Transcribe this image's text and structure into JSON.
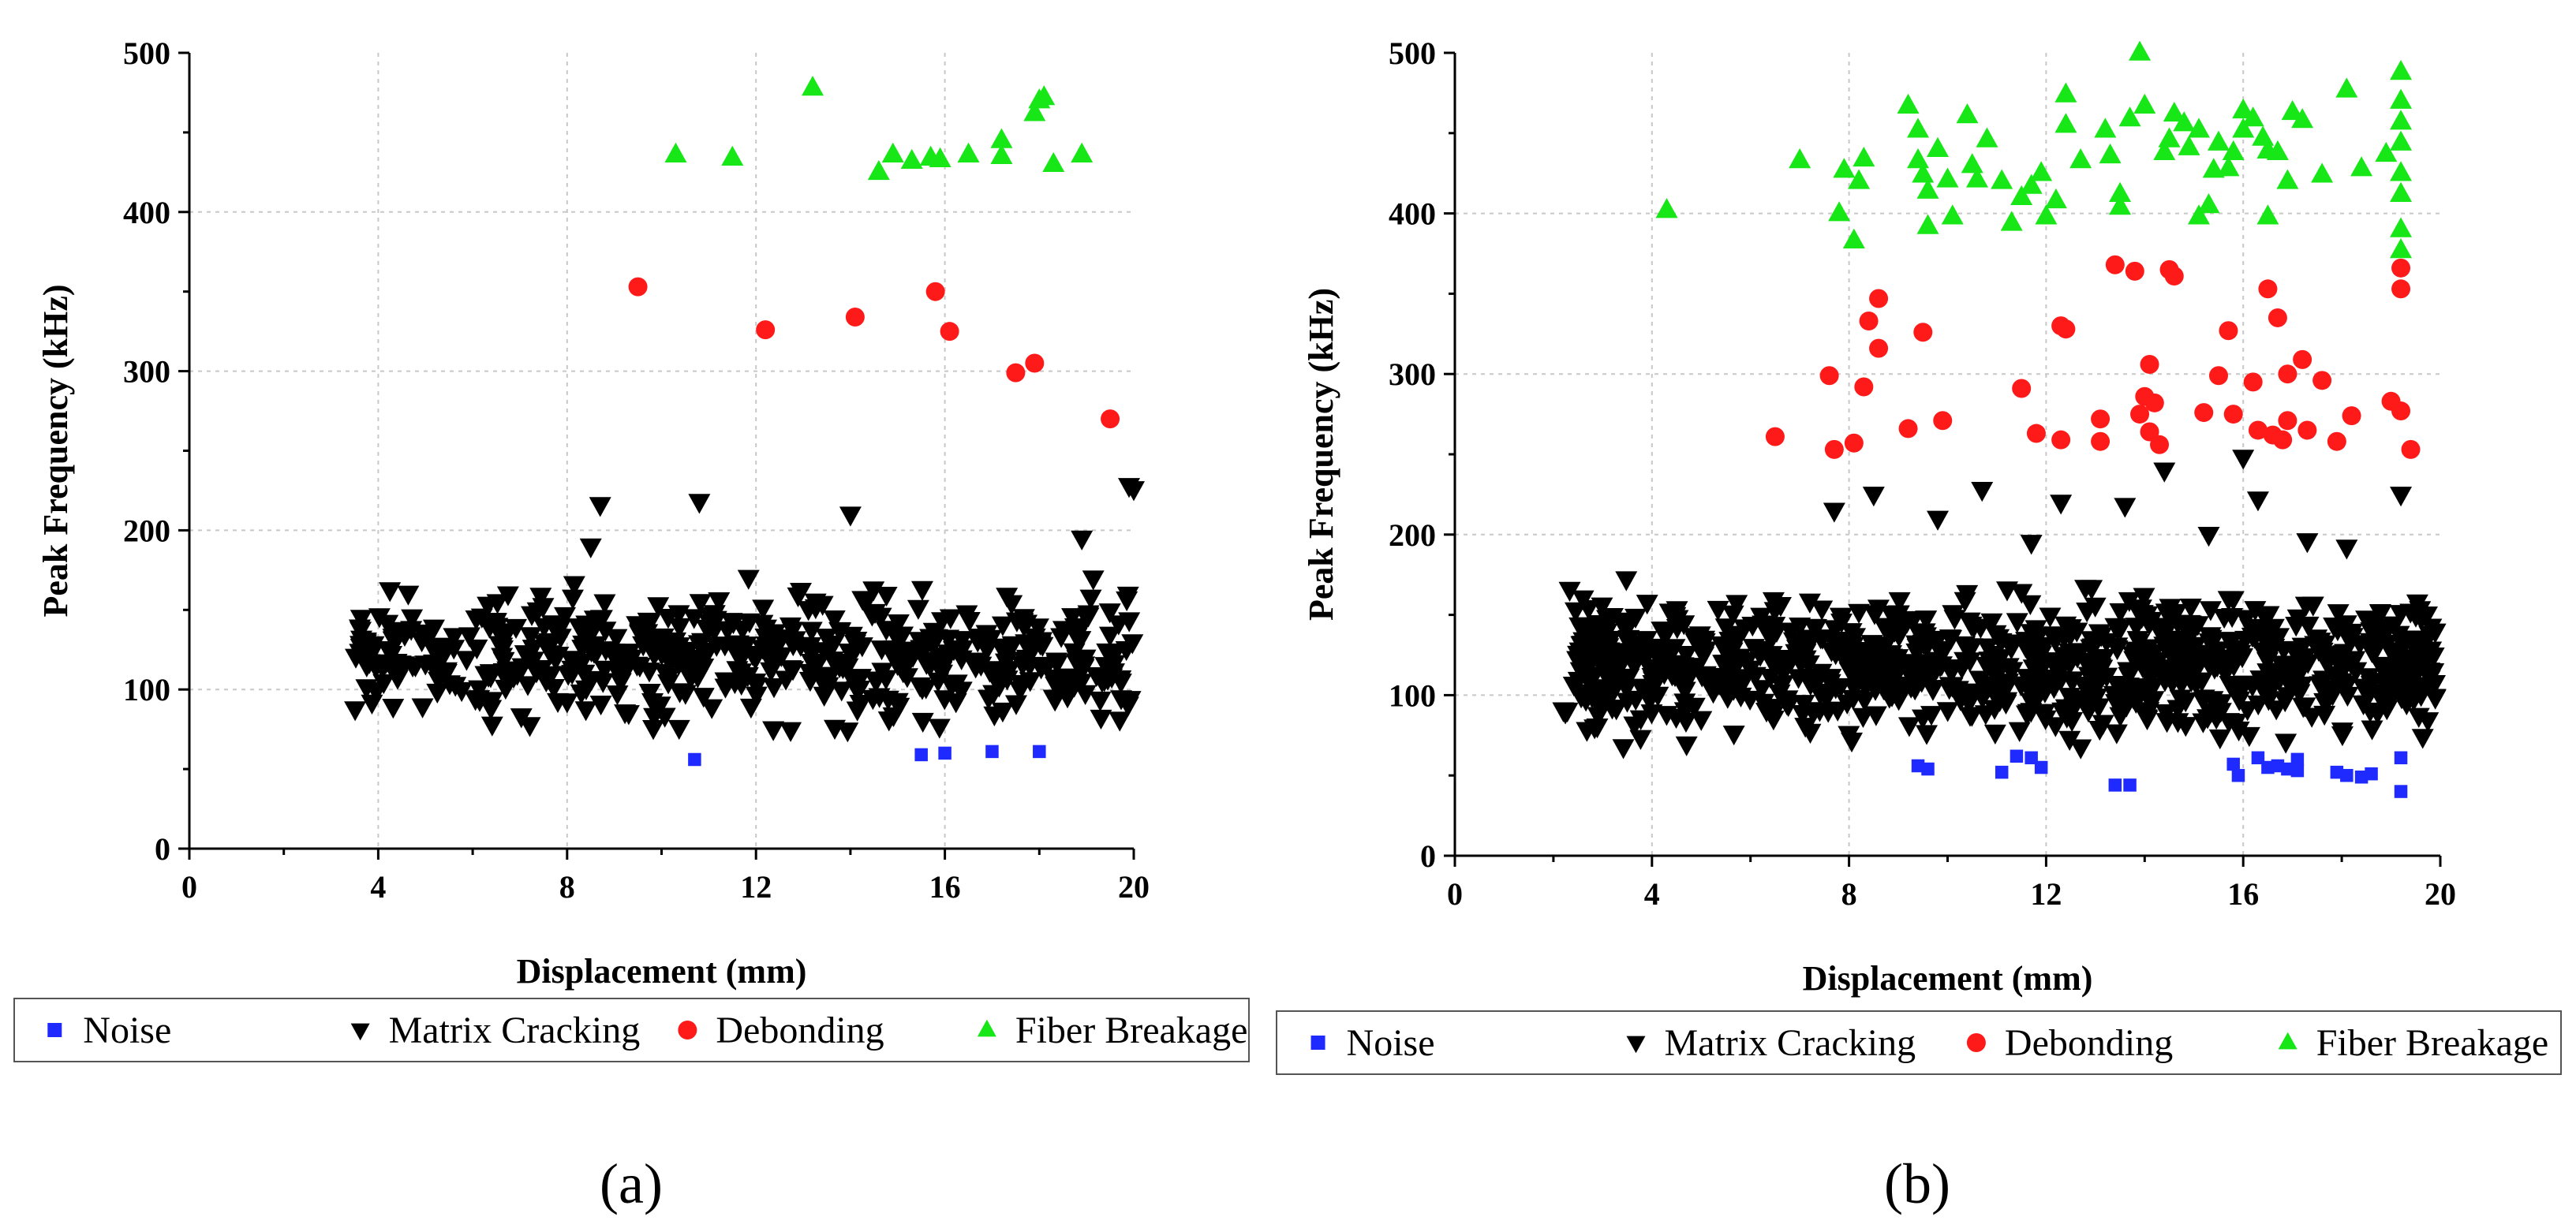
{
  "figure": {
    "description_labels": [
      "(a)",
      "(b)"
    ]
  },
  "colors": {
    "noise": "#1e2aff",
    "matrix": "#000000",
    "debond": "#ff1a1a",
    "fiber": "#17e617",
    "grid": "#c8c8c8"
  },
  "chart_data": [
    {
      "type": "scatter",
      "panel_label": "(a)",
      "xlabel": "Displacement (mm)",
      "ylabel": "Peak Frequency (kHz)",
      "xlim": [
        0,
        20
      ],
      "ylim": [
        0,
        500
      ],
      "xticks": [
        0,
        4,
        8,
        12,
        16,
        20
      ],
      "yticks": [
        0,
        100,
        200,
        300,
        400,
        500
      ],
      "grid": true,
      "legend": {
        "placement": "bottom",
        "entries": [
          "Noise",
          "Matrix Cracking",
          "Debonding",
          "Fiber Breakage"
        ]
      },
      "series": [
        {
          "name": "Noise",
          "marker": "square",
          "points": [
            [
              10.7,
              56
            ],
            [
              15.5,
              59
            ],
            [
              16.0,
              60
            ],
            [
              17.0,
              61
            ],
            [
              18.0,
              61
            ]
          ]
        },
        {
          "name": "Matrix Cracking",
          "marker": "triangle-down",
          "random": true,
          "n": 550,
          "xrange": [
            3.5,
            20
          ],
          "yrange": [
            65,
            180
          ],
          "seed": 7,
          "outliers": [
            [
              8.7,
              216
            ],
            [
              10.8,
              218
            ],
            [
              14.0,
              210
            ],
            [
              8.5,
              190
            ],
            [
              18.9,
              195
            ],
            [
              19.9,
              228
            ],
            [
              20.0,
              226
            ]
          ]
        },
        {
          "name": "Debonding",
          "marker": "circle",
          "points": [
            [
              9.5,
              353
            ],
            [
              12.2,
              326
            ],
            [
              14.1,
              334
            ],
            [
              15.8,
              350
            ],
            [
              16.1,
              325
            ],
            [
              17.5,
              299
            ],
            [
              17.9,
              305
            ],
            [
              19.5,
              270
            ]
          ]
        },
        {
          "name": "Fiber Breakage",
          "marker": "triangle-up",
          "points": [
            [
              10.3,
              436
            ],
            [
              11.5,
              434
            ],
            [
              13.2,
              478
            ],
            [
              14.6,
              425
            ],
            [
              14.9,
              436
            ],
            [
              15.3,
              432
            ],
            [
              15.7,
              434
            ],
            [
              15.9,
              433
            ],
            [
              16.5,
              436
            ],
            [
              17.2,
              445
            ],
            [
              17.2,
              435
            ],
            [
              17.9,
              462
            ],
            [
              18.0,
              470
            ],
            [
              18.1,
              472
            ],
            [
              18.3,
              430
            ],
            [
              18.9,
              436
            ]
          ]
        }
      ]
    },
    {
      "type": "scatter",
      "panel_label": "(b)",
      "xlabel": "Displacement (mm)",
      "ylabel": "Peak Frequency (kHz)",
      "xlim": [
        0,
        20
      ],
      "ylim": [
        0,
        500
      ],
      "xticks": [
        0,
        4,
        8,
        12,
        16,
        20
      ],
      "yticks": [
        0,
        100,
        200,
        300,
        400,
        500
      ],
      "grid": true,
      "legend": {
        "placement": "bottom",
        "entries": [
          "Noise",
          "Matrix Cracking",
          "Debonding",
          "Fiber Breakage"
        ]
      },
      "series": [
        {
          "name": "Noise",
          "marker": "square",
          "points": [
            [
              9.4,
              56
            ],
            [
              9.6,
              54
            ],
            [
              11.1,
              52
            ],
            [
              11.4,
              62
            ],
            [
              11.9,
              55
            ],
            [
              11.7,
              61
            ],
            [
              13.4,
              44
            ],
            [
              13.7,
              44
            ],
            [
              15.8,
              57
            ],
            [
              15.9,
              50
            ],
            [
              16.3,
              61
            ],
            [
              16.5,
              55
            ],
            [
              16.7,
              56
            ],
            [
              16.9,
              54
            ],
            [
              17.1,
              53
            ],
            [
              17.1,
              60
            ],
            [
              17.9,
              52
            ],
            [
              18.1,
              50
            ],
            [
              18.4,
              49
            ],
            [
              18.6,
              51
            ],
            [
              19.2,
              61
            ],
            [
              19.2,
              40
            ]
          ]
        },
        {
          "name": "Matrix Cracking",
          "marker": "triangle-down",
          "random": true,
          "n": 1000,
          "xrange": [
            2.2,
            19.9
          ],
          "yrange": [
            62,
            175
          ],
          "seed": 11,
          "outliers": [
            [
              8.5,
              225
            ],
            [
              9.8,
              210
            ],
            [
              10.7,
              228
            ],
            [
              12.3,
              220
            ],
            [
              13.6,
              218
            ],
            [
              14.4,
              240
            ],
            [
              16.0,
              248
            ],
            [
              16.3,
              222
            ],
            [
              17.3,
              196
            ],
            [
              19.2,
              225
            ],
            [
              7.7,
              215
            ],
            [
              11.7,
              195
            ],
            [
              15.3,
              200
            ],
            [
              18.1,
              192
            ]
          ]
        },
        {
          "name": "Debonding",
          "marker": "circle",
          "points": [
            [
              6.5,
              261
            ],
            [
              7.6,
              299
            ],
            [
              7.7,
              253
            ],
            [
              8.1,
              257
            ],
            [
              8.3,
              292
            ],
            [
              8.4,
              333
            ],
            [
              8.6,
              347
            ],
            [
              8.6,
              316
            ],
            [
              9.2,
              266
            ],
            [
              9.5,
              326
            ],
            [
              9.9,
              271
            ],
            [
              11.5,
              291
            ],
            [
              11.8,
              263
            ],
            [
              12.3,
              259
            ],
            [
              12.3,
              330
            ],
            [
              12.4,
              328
            ],
            [
              13.1,
              272
            ],
            [
              13.1,
              258
            ],
            [
              13.4,
              368
            ],
            [
              13.8,
              364
            ],
            [
              13.9,
              275
            ],
            [
              14.0,
              286
            ],
            [
              14.1,
              306
            ],
            [
              14.2,
              282
            ],
            [
              14.1,
              264
            ],
            [
              14.3,
              256
            ],
            [
              14.5,
              365
            ],
            [
              14.6,
              361
            ],
            [
              15.2,
              276
            ],
            [
              15.5,
              299
            ],
            [
              15.7,
              327
            ],
            [
              15.8,
              275
            ],
            [
              16.2,
              295
            ],
            [
              16.3,
              265
            ],
            [
              16.5,
              353
            ],
            [
              16.7,
              335
            ],
            [
              16.6,
              262
            ],
            [
              16.8,
              259
            ],
            [
              16.9,
              271
            ],
            [
              16.9,
              300
            ],
            [
              17.2,
              309
            ],
            [
              17.3,
              265
            ],
            [
              17.6,
              296
            ],
            [
              17.9,
              258
            ],
            [
              18.2,
              274
            ],
            [
              19.0,
              283
            ],
            [
              19.2,
              366
            ],
            [
              19.2,
              353
            ],
            [
              19.2,
              277
            ],
            [
              19.4,
              253
            ]
          ]
        },
        {
          "name": "Fiber Breakage",
          "marker": "triangle-up",
          "points": [
            [
              4.3,
              402
            ],
            [
              7.0,
              433
            ],
            [
              7.8,
              400
            ],
            [
              7.9,
              427
            ],
            [
              8.1,
              383
            ],
            [
              8.2,
              420
            ],
            [
              8.3,
              434
            ],
            [
              9.2,
              467
            ],
            [
              9.4,
              452
            ],
            [
              9.4,
              433
            ],
            [
              9.5,
              424
            ],
            [
              9.6,
              414
            ],
            [
              9.6,
              392
            ],
            [
              9.8,
              440
            ],
            [
              10.0,
              421
            ],
            [
              10.1,
              398
            ],
            [
              10.4,
              461
            ],
            [
              10.5,
              430
            ],
            [
              10.6,
              421
            ],
            [
              10.8,
              446
            ],
            [
              11.1,
              420
            ],
            [
              11.3,
              394
            ],
            [
              11.5,
              410
            ],
            [
              11.7,
              417
            ],
            [
              11.9,
              425
            ],
            [
              12.0,
              398
            ],
            [
              12.2,
              408
            ],
            [
              12.4,
              474
            ],
            [
              12.4,
              455
            ],
            [
              12.7,
              433
            ],
            [
              13.2,
              452
            ],
            [
              13.3,
              436
            ],
            [
              13.5,
              412
            ],
            [
              13.5,
              404
            ],
            [
              13.7,
              459
            ],
            [
              13.9,
              500
            ],
            [
              14.0,
              467
            ],
            [
              14.4,
              438
            ],
            [
              14.5,
              446
            ],
            [
              14.6,
              462
            ],
            [
              14.8,
              456
            ],
            [
              14.9,
              441
            ],
            [
              15.1,
              452
            ],
            [
              15.1,
              398
            ],
            [
              15.3,
              405
            ],
            [
              15.4,
              427
            ],
            [
              15.5,
              444
            ],
            [
              15.7,
              428
            ],
            [
              15.8,
              438
            ],
            [
              16.0,
              452
            ],
            [
              16.0,
              464
            ],
            [
              16.2,
              459
            ],
            [
              16.4,
              447
            ],
            [
              16.5,
              439
            ],
            [
              16.5,
              398
            ],
            [
              16.7,
              438
            ],
            [
              16.9,
              420
            ],
            [
              17.0,
              463
            ],
            [
              17.2,
              458
            ],
            [
              17.6,
              424
            ],
            [
              18.1,
              477
            ],
            [
              18.4,
              428
            ],
            [
              18.9,
              437
            ],
            [
              19.2,
              488
            ],
            [
              19.2,
              470
            ],
            [
              19.2,
              457
            ],
            [
              19.2,
              444
            ],
            [
              19.2,
              425
            ],
            [
              19.2,
              412
            ],
            [
              19.2,
              390
            ],
            [
              19.2,
              377
            ]
          ]
        }
      ]
    }
  ]
}
